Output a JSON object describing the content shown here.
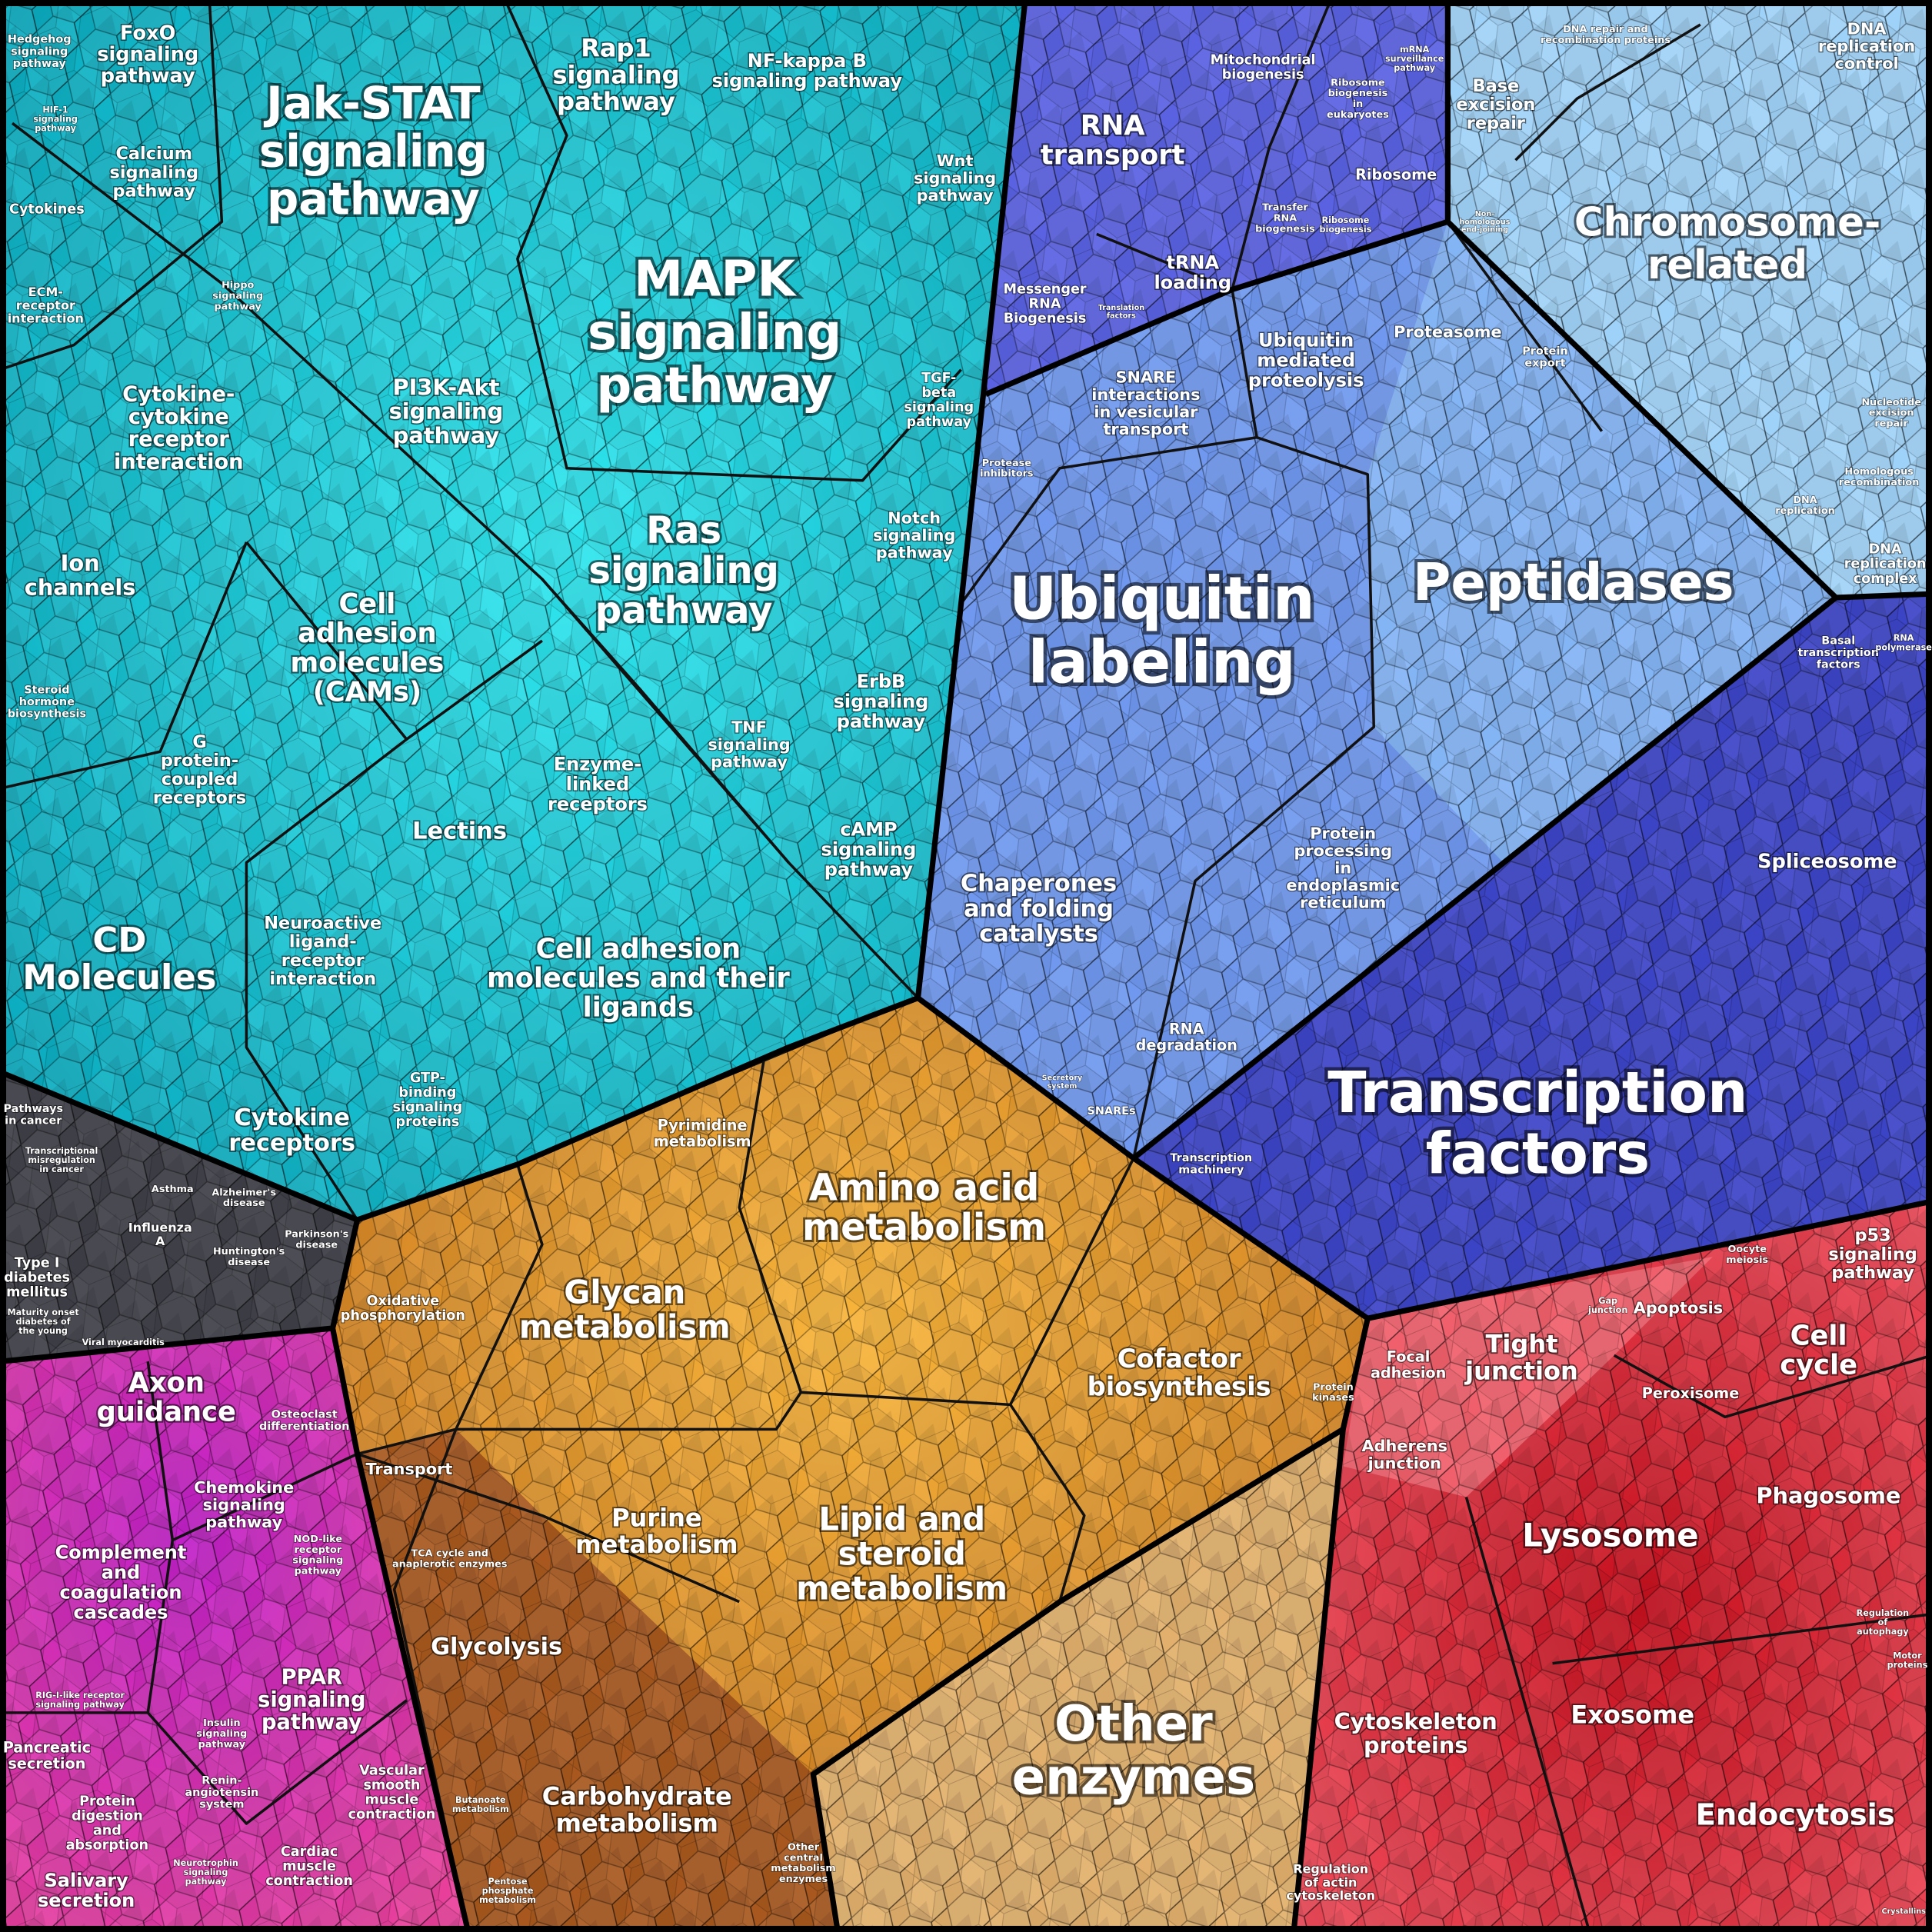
{
  "signaling": [
    "Hedgehog\nsignaling\npathway",
    "FoxO\nsignaling\npathway",
    "HIF-1\nsignaling\npathway",
    "Calcium\nsignaling\npathway",
    "Cytokines",
    "Jak-STAT\nsignaling\npathway",
    "Rap1\nsignaling\npathway",
    "NF-kappa B\nsignaling pathway",
    "Wnt\nsignaling\npathway",
    "MAPK\nsignaling\npathway",
    "ECM-\nreceptor\ninteraction",
    "Hippo\nsignaling\npathway",
    "Cytokine-\ncytokine\nreceptor\ninteraction",
    "PI3K-Akt\nsignaling\npathway",
    "TGF-\nbeta\nsignaling\npathway",
    "Ras\nsignaling\npathway",
    "Notch\nsignaling\npathway",
    "Ion\nchannels",
    "Cell\nadhesion\nmolecules\n(CAMs)",
    "Steroid\nhormone\nbiosynthesis",
    "ErbB\nsignaling\npathway",
    "TNF\nsignaling\npathway",
    "G\nprotein-\ncoupled\nreceptors",
    "Enzyme-\nlinked\nreceptors",
    "Lectins",
    "cAMP\nsignaling\npathway",
    "CD\nMolecules",
    "Neuroactive\nligand-\nreceptor\ninteraction",
    "Cell adhesion\nmolecules and their\nligands",
    "Cytokine\nreceptors",
    "GTP-\nbinding\nsignaling\nproteins"
  ],
  "diseases": [
    "Pathways\nin cancer",
    "Transcriptional\nmisregulation\nin cancer",
    "Asthma",
    "Alzheimer's\ndisease",
    "Influenza\nA",
    "Huntington's\ndisease",
    "Parkinson's\ndisease",
    "Type I\ndiabetes\nmellitus",
    "Maturity onset\ndiabetes of\nthe young",
    "Viral myocarditis"
  ],
  "organismal": [
    "Axon\nguidance",
    "Osteoclast\ndifferentiation",
    "Chemokine\nsignaling\npathway",
    "Complement\nand\ncoagulation\ncascades",
    "NOD-like\nreceptor\nsignaling\npathway",
    "PPAR\nsignaling\npathway",
    "RIG-I-like receptor\nsignaling pathway",
    "Insulin\nsignaling\npathway",
    "Renin-\nangiotensin\nsystem",
    "Vascular\nsmooth\nmuscle\ncontraction",
    "Pancreatic\nsecretion",
    "Protein\ndigestion\nand\nabsorption",
    "Cardiac\nmuscle\ncontraction",
    "Salivary\nsecretion",
    "Neurotrophin\nsignaling\npathway"
  ],
  "metabolism": [
    "Pyrimidine\nmetabolism",
    "Amino acid\nmetabolism",
    "Oxidative\nphosphorylation",
    "Glycan\nmetabolism",
    "Cofactor\nbiosynthesis",
    "Transport",
    "Purine\nmetabolism",
    "Lipid and\nsteroid\nmetabolism",
    "TCA cycle and\nanaplerotic enzymes",
    "Glycolysis",
    "Carbohydrate\nmetabolism",
    "Other\nenzymes",
    "Butanoate\nmetabolism",
    "Pentose\nphosphate\nmetabolism",
    "Other\ncentral\nmetabolism\nenzymes",
    "Protein\nkinases"
  ],
  "genetic": [
    "Mitochondrial\nbiogenesis",
    "mRNA\nsurveillance\npathway",
    "RNA\ntransport",
    "Ribosome\nbiogenesis\nin\neukaryotes",
    "Ribosome",
    "Transfer\nRNA\nbiogenesis",
    "Ribosome\nbiogenesis",
    "tRNA\nloading",
    "Messenger\nRNA\nBiogenesis",
    "Translation\nfactors",
    "Ubiquitin\nmediated\nproteolysis",
    "Proteasome",
    "Protein\nexport",
    "SNARE\ninteractions\nin vesicular\ntransport",
    "Protease\ninhibitors",
    "Ubiquitin\nlabeling",
    "Peptidases",
    "Chaperones\nand folding\ncatalysts",
    "Protein\nprocessing\nin\nendoplasmic\nreticulum",
    "RNA\ndegradation",
    "SNAREs",
    "Secretory\nsystem",
    "DNA repair and\nrecombination proteins",
    "DNA\nreplication\ncontrol",
    "Base\nexcision\nrepair",
    "Chromosome-\nrelated",
    "Non-\nhomologous\nend-joining",
    "Nucleotide\nexcision\nrepair",
    "Homologous\nrecombination",
    "DNA\nreplication",
    "DNA\nreplication\ncomplex",
    "Basal\ntranscription\nfactors",
    "RNA\npolymerase",
    "Spliceosome",
    "Transcription\nfactors",
    "Transcription\nmachinery"
  ],
  "cellular": [
    "Oocyte\nmeiosis",
    "p53\nsignaling\npathway",
    "Gap\njunction",
    "Apoptosis",
    "Focal\nadhesion",
    "Tight\njunction",
    "Cell\ncycle",
    "Peroxisome",
    "Adherens\njunction",
    "Phagosome",
    "Lysosome",
    "Regulation\nof\nautophagy",
    "Motor\nproteins",
    "Cytoskeleton\nproteins",
    "Exosome",
    "Endocytosis",
    "Regulation\nof actin\ncytoskeleton",
    "Crystallins"
  ]
}
